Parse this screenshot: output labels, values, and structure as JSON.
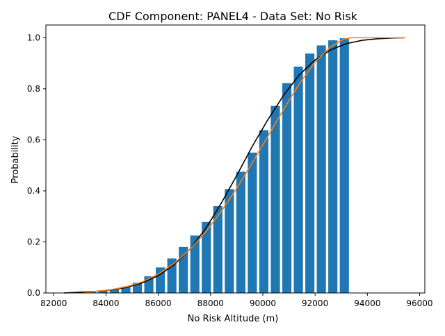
{
  "chart_data": {
    "type": "bar",
    "title": "CDF Component: PANEL4 - Data Set: No Risk",
    "xlabel": "No Risk Altitude (m)",
    "ylabel": "Probability",
    "xlim": [
      81700,
      96200
    ],
    "ylim": [
      0,
      1.05
    ],
    "xticks": [
      82000,
      84000,
      86000,
      88000,
      90000,
      92000,
      94000,
      96000
    ],
    "xtick_labels": [
      "82000",
      "84000",
      "86000",
      "88000",
      "90000",
      "92000",
      "94000",
      "96000"
    ],
    "yticks": [
      0.0,
      0.2,
      0.4,
      0.6,
      0.8,
      1.0
    ],
    "ytick_labels": [
      "0.0",
      "0.2",
      "0.4",
      "0.6",
      "0.8",
      "1.0"
    ],
    "grid": false,
    "bar_width": 350,
    "bars": {
      "x": [
        82560,
        83000,
        83440,
        83880,
        84320,
        84760,
        85200,
        85640,
        86080,
        86520,
        86960,
        87400,
        87840,
        88280,
        88720,
        89160,
        89600,
        90040,
        90480,
        90920,
        91360,
        91800,
        92240,
        92680,
        93120
      ],
      "values": [
        0.002,
        0.004,
        0.006,
        0.01,
        0.015,
        0.025,
        0.04,
        0.065,
        0.1,
        0.135,
        0.18,
        0.225,
        0.278,
        0.34,
        0.407,
        0.475,
        0.55,
        0.638,
        0.733,
        0.822,
        0.887,
        0.938,
        0.97,
        0.99,
        0.998
      ],
      "color": "#1f77b4"
    },
    "series": [
      {
        "type": "line",
        "color": "#000000",
        "x": [
          82400,
          83000,
          83600,
          84200,
          84800,
          85400,
          86000,
          86600,
          87200,
          87800,
          88400,
          89000,
          89600,
          90200,
          90800,
          91400,
          92000,
          92600,
          93200,
          93800,
          94400,
          95000,
          95420
        ],
        "y": [
          0.0,
          0.003,
          0.006,
          0.012,
          0.022,
          0.04,
          0.068,
          0.11,
          0.17,
          0.25,
          0.35,
          0.46,
          0.575,
          0.68,
          0.775,
          0.855,
          0.913,
          0.953,
          0.977,
          0.99,
          0.996,
          0.999,
          1.0
        ]
      },
      {
        "type": "line",
        "color": "#ff7f0e",
        "x": [
          83100,
          83600,
          84200,
          84800,
          85400,
          86000,
          86600,
          87200,
          87800,
          88400,
          89000,
          89600,
          90200,
          90800,
          91400,
          92000,
          92600,
          93100,
          93400,
          94000,
          95000,
          95420
        ],
        "y": [
          0.0,
          0.006,
          0.013,
          0.025,
          0.044,
          0.074,
          0.115,
          0.17,
          0.237,
          0.318,
          0.41,
          0.51,
          0.615,
          0.72,
          0.82,
          0.905,
          0.965,
          0.995,
          1.0,
          1.0,
          1.0,
          1.0
        ]
      }
    ]
  }
}
